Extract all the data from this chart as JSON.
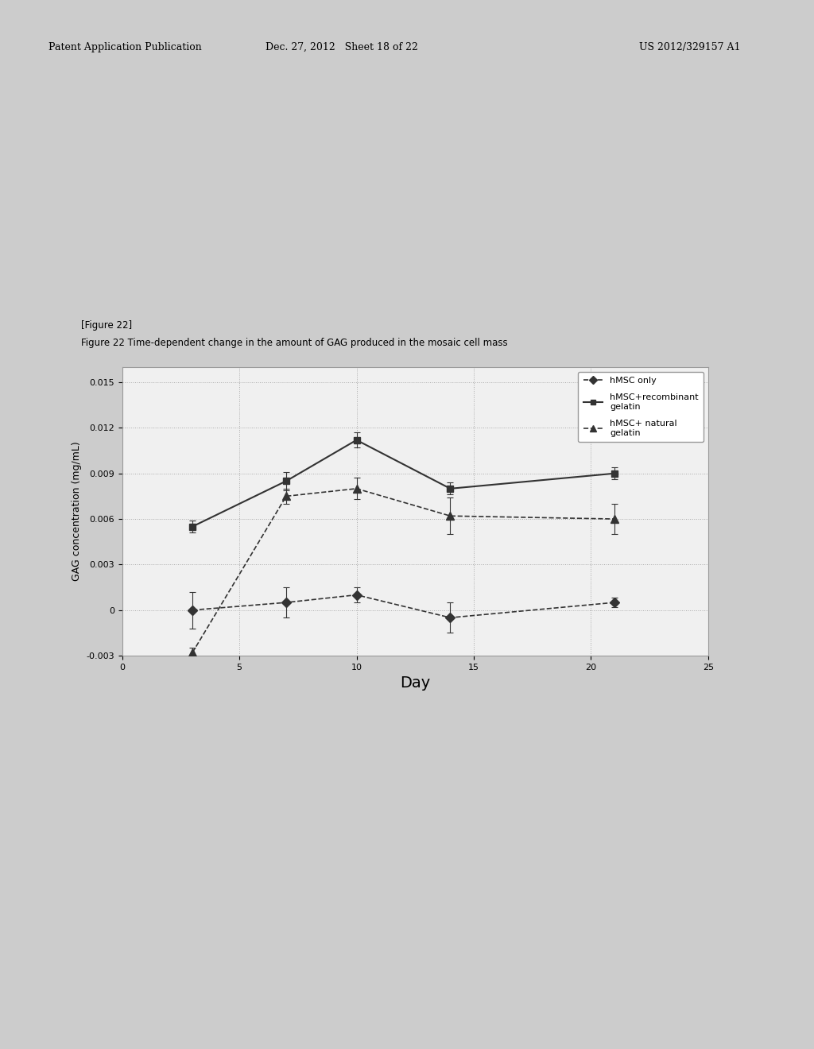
{
  "figure_label": "[Figure 22]",
  "figure_caption": "Figure 22 Time-dependent change in the amount of GAG produced in the mosaic cell mass",
  "xlabel": "Day",
  "ylabel": "GAG concentration (mg/mL)",
  "xlim": [
    0,
    25
  ],
  "ylim": [
    -0.003,
    0.016
  ],
  "yticks": [
    -0.003,
    0,
    0.003,
    0.006,
    0.009,
    0.012,
    0.015
  ],
  "xticks": [
    0,
    5,
    10,
    15,
    20,
    25
  ],
  "background_color": "#e8e8e8",
  "plot_bg_color": "#f0f0f0",
  "page_bg_color": "#d8d8d8",
  "series": [
    {
      "label": "hMSC only",
      "x": [
        3,
        7,
        10,
        14,
        21
      ],
      "y": [
        0.0,
        0.0005,
        0.001,
        -0.0005,
        0.0005
      ],
      "yerr": [
        0.0012,
        0.001,
        0.0005,
        0.001,
        0.0003
      ],
      "color": "#333333",
      "linestyle": "--",
      "marker": "D",
      "markersize": 6,
      "linewidth": 1.2
    },
    {
      "label": "hMSC+recombinant\ngelatin",
      "x": [
        3,
        7,
        10,
        14,
        21
      ],
      "y": [
        0.0055,
        0.0085,
        0.0112,
        0.008,
        0.009
      ],
      "yerr": [
        0.0004,
        0.0006,
        0.0005,
        0.0004,
        0.0004
      ],
      "color": "#333333",
      "linestyle": "-",
      "marker": "s",
      "markersize": 6,
      "linewidth": 1.5
    },
    {
      "label": "hMSC+ natural\ngelatin",
      "x": [
        3,
        7,
        10,
        14,
        21
      ],
      "y": [
        -0.0028,
        0.0075,
        0.008,
        0.0062,
        0.006
      ],
      "yerr": [
        0.0003,
        0.0005,
        0.0007,
        0.0012,
        0.001
      ],
      "color": "#333333",
      "linestyle": "--",
      "marker": "^",
      "markersize": 7,
      "linewidth": 1.2
    }
  ],
  "grid_color": "#aaaaaa",
  "grid_linestyle": ":",
  "grid_linewidth": 0.7,
  "text_fontsize": 8,
  "axis_fontsize": 9,
  "tick_fontsize": 8,
  "legend_fontsize": 8,
  "header_left": "Patent Application Publication",
  "header_mid": "Dec. 27, 2012   Sheet 18 of 22",
  "header_right": "US 2012/329157 A1"
}
